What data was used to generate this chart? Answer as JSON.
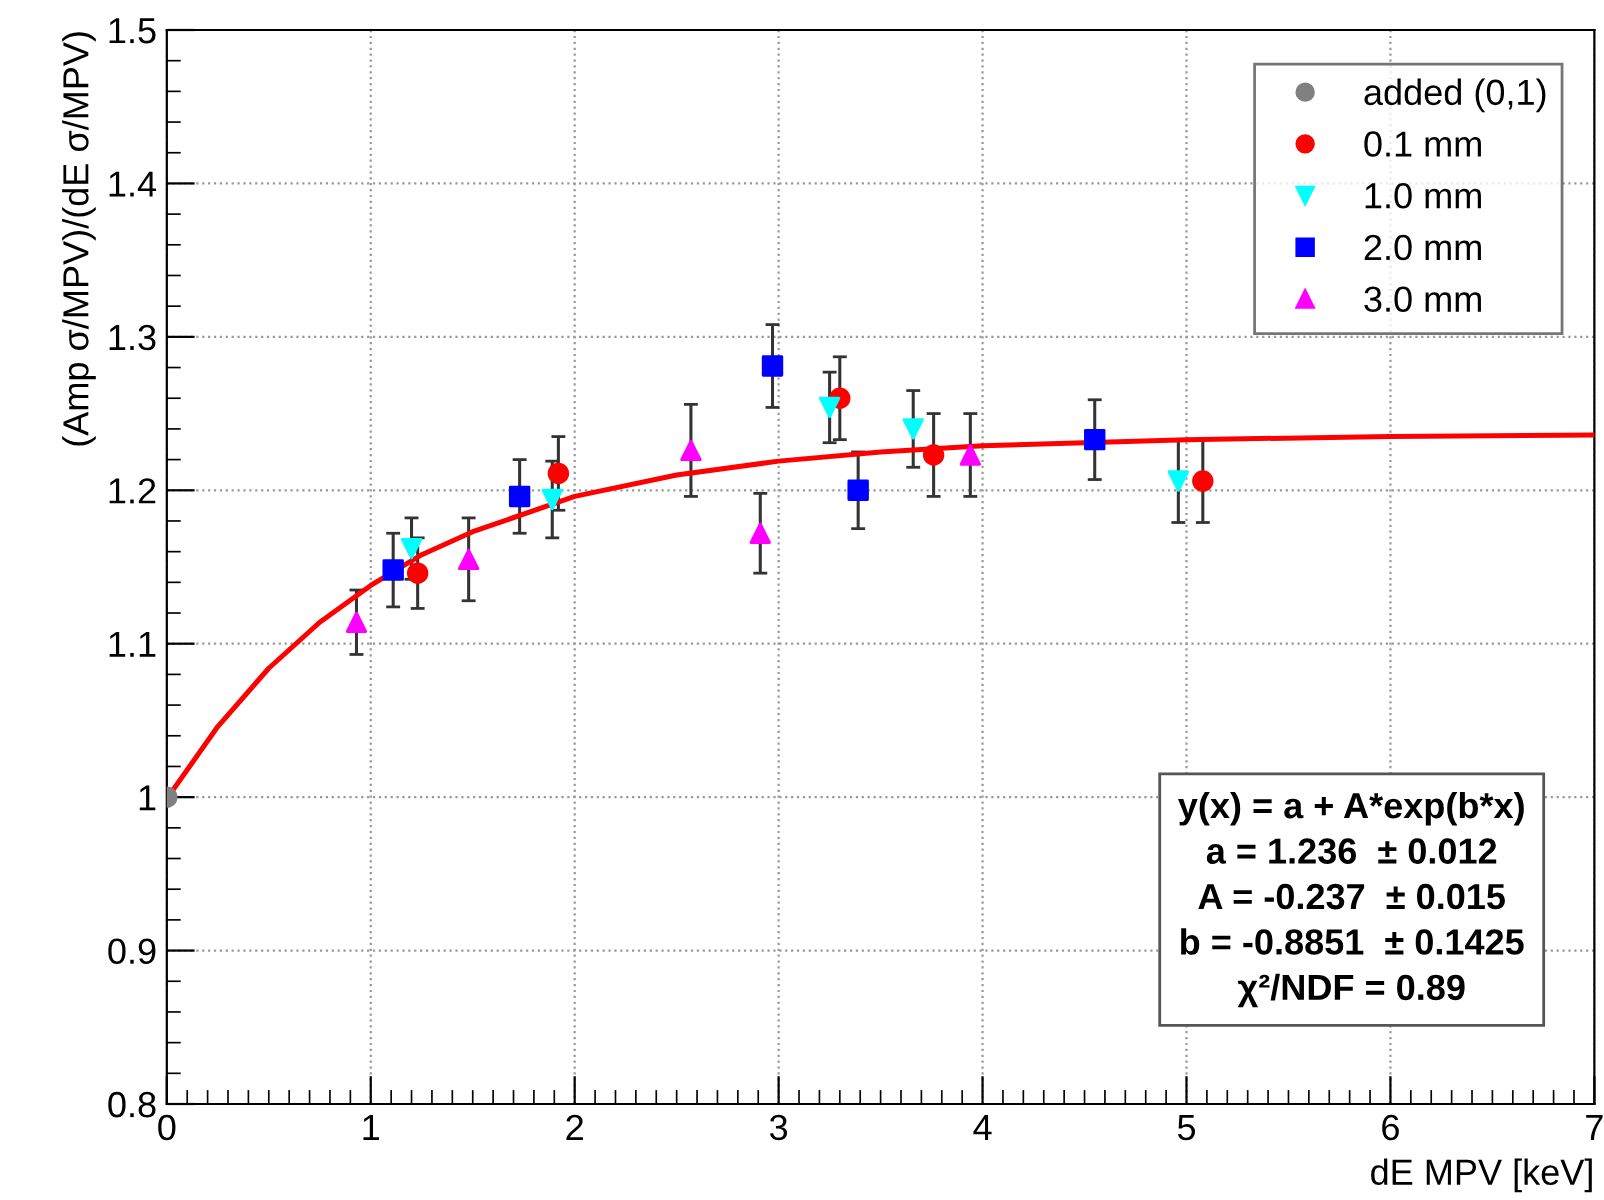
{
  "chart_data": {
    "type": "scatter",
    "xlabel": "dE MPV [keV]",
    "ylabel": "(Amp σ/MPV)/(dE σ/MPV)",
    "xlim": [
      0,
      7
    ],
    "xticks": [
      0,
      1,
      2,
      3,
      4,
      5,
      6,
      7
    ],
    "ylim": [
      0.8,
      1.5
    ],
    "yticks": [
      0.8,
      0.9,
      1,
      1.1,
      1.2,
      1.3,
      1.4,
      1.5
    ],
    "grid": true,
    "legend": "top right",
    "annotations": [
      "y(x) = a + A*exp(b*x)",
      "a = 1.236  ± 0.012",
      "A = -0.237  ± 0.015",
      "b = -0.8851  ± 0.1425",
      "χ²/NDF = 0.89"
    ],
    "series": [
      {
        "type": "line",
        "color": "#ff0000",
        "marker": "none",
        "x": [
          0,
          0.25,
          0.5,
          0.75,
          1,
          1.25,
          1.5,
          2,
          2.5,
          3,
          3.5,
          4,
          5,
          6,
          7
        ],
        "values": [
          0.999,
          1.046,
          1.084,
          1.114,
          1.138,
          1.158,
          1.173,
          1.196,
          1.21,
          1.219,
          1.225,
          1.229,
          1.233,
          1.235,
          1.236
        ]
      },
      {
        "name": "added (0,1)",
        "color": "#808080",
        "marker": "circle",
        "x": [
          0
        ],
        "values": [
          1
        ]
      },
      {
        "name": "0.1 mm",
        "color": "#ff0000",
        "marker": "circle",
        "x": [
          1.23,
          1.92,
          3.3,
          3.76,
          5.08
        ],
        "values": [
          1.146,
          1.211,
          1.26,
          1.223,
          1.206
        ],
        "errors": [
          0.023,
          0.024,
          0.027,
          0.027,
          0.027
        ]
      },
      {
        "name": "1.0 mm",
        "color": "#00ffff",
        "marker": "triangle_down",
        "x": [
          1.2,
          1.89,
          3.25,
          3.66,
          4.96
        ],
        "values": [
          1.162,
          1.194,
          1.254,
          1.24,
          1.206
        ],
        "errors": [
          0.02,
          0.025,
          0.023,
          0.025,
          0.027
        ]
      },
      {
        "name": "2.0 mm",
        "color": "#0000ff",
        "marker": "square",
        "x": [
          1.11,
          1.73,
          2.97,
          3.39,
          4.55
        ],
        "values": [
          1.148,
          1.196,
          1.281,
          1.2,
          1.233
        ],
        "errors": [
          0.024,
          0.024,
          0.027,
          0.025,
          0.026
        ]
      },
      {
        "name": "3.0 mm",
        "color": "#ff00ff",
        "marker": "triangle",
        "x": [
          0.93,
          1.48,
          2.57,
          2.91,
          3.94
        ],
        "values": [
          1.114,
          1.155,
          1.226,
          1.172,
          1.223
        ],
        "errors": [
          0.021,
          0.027,
          0.03,
          0.026,
          0.027
        ]
      }
    ]
  }
}
